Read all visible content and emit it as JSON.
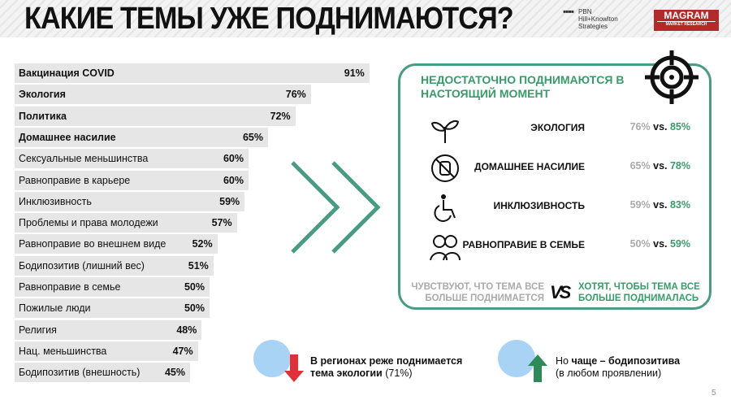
{
  "header": {
    "title": "КАКИЕ ТЕМЫ УЖЕ ПОДНИМАЮТСЯ?",
    "logo_pbn": [
      "PBN",
      "Hill+Knowlton",
      "Strategies"
    ],
    "logo_magram": {
      "name": "MAGRAM",
      "sub": "MARKET RESEARCH"
    }
  },
  "topics": [
    {
      "label": "Вакцинация COVID",
      "value": 91,
      "text": "91%",
      "bold": true
    },
    {
      "label": "Экология",
      "value": 76,
      "text": "76%",
      "bold": true
    },
    {
      "label": "Политика",
      "value": 72,
      "text": "72%",
      "bold": true
    },
    {
      "label": "Домашнее насилие",
      "value": 65,
      "text": "65%",
      "bold": true
    },
    {
      "label": "Сексуальные меньшинства",
      "value": 60,
      "text": "60%",
      "bold": false
    },
    {
      "label": "Равноправие в карьере",
      "value": 60,
      "text": "60%",
      "bold": false
    },
    {
      "label": "Инклюзивность",
      "value": 59,
      "text": "59%",
      "bold": false
    },
    {
      "label": "Проблемы и права молодежи",
      "value": 57,
      "text": "57%",
      "bold": false
    },
    {
      "label": "Равноправие во внешнем виде",
      "value": 52,
      "text": "52%",
      "bold": false
    },
    {
      "label": "Бодипозитив  (лишний вес)",
      "value": 51,
      "text": "51%",
      "bold": false
    },
    {
      "label": "Равноправие в семье",
      "value": 50,
      "text": "50%",
      "bold": false
    },
    {
      "label": "Пожилые люди",
      "value": 50,
      "text": "50%",
      "bold": false
    },
    {
      "label": "Религия",
      "value": 48,
      "text": "48%",
      "bold": false
    },
    {
      "label": "Нац. меньшинства",
      "value": 47,
      "text": "47%",
      "bold": false
    },
    {
      "label": "Бодипозитив (внешность)",
      "value": 45,
      "text": "45%",
      "bold": false
    }
  ],
  "panel": {
    "title": "НЕДОСТАТОЧНО ПОДНИМАЮТСЯ В НАСТОЯЩИЙ МОМЕНТ",
    "rows": [
      {
        "icon": "sprout-icon",
        "label": "ЭКОЛОГИЯ",
        "feel": "76%",
        "vs": " vs. ",
        "want": "85%"
      },
      {
        "icon": "stop-hand-icon",
        "label": "ДОМАШНЕЕ НАСИЛИЕ",
        "feel": "65%",
        "vs": " vs. ",
        "want": "78%"
      },
      {
        "icon": "wheelchair-icon",
        "label": "ИНКЛЮЗИВНОСТЬ",
        "feel": "59%",
        "vs": " vs. ",
        "want": "83%"
      },
      {
        "icon": "family-icon",
        "label": "РАВНОПРАВИЕ В СЕМЬЕ",
        "feel": "50%",
        "vs": " vs. ",
        "want": "59%"
      }
    ],
    "legend_feel": "ЧУВСТВУЮТ, ЧТО ТЕМА ВСЕ БОЛЬШЕ ПОДНИМАЕТСЯ",
    "legend_vs": "VS",
    "legend_want": "ХОТЯТ, ЧТОБЫ ТЕМА ВСЕ БОЛЬШЕ ПОДНИМАЛАСЬ"
  },
  "notes": {
    "regions_bold": "В регионах реже поднимается тема экологии",
    "regions_rest": " (71%)",
    "more_pre": "Но ",
    "more_bold": "чаще – бодипозитива",
    "more_rest": "(в любом проявлении)"
  },
  "colors": {
    "green": "#3a9b6a",
    "teal": "#4a9b83",
    "red": "#e0303a",
    "magram": "#b22a2a"
  },
  "page_number": "5"
}
